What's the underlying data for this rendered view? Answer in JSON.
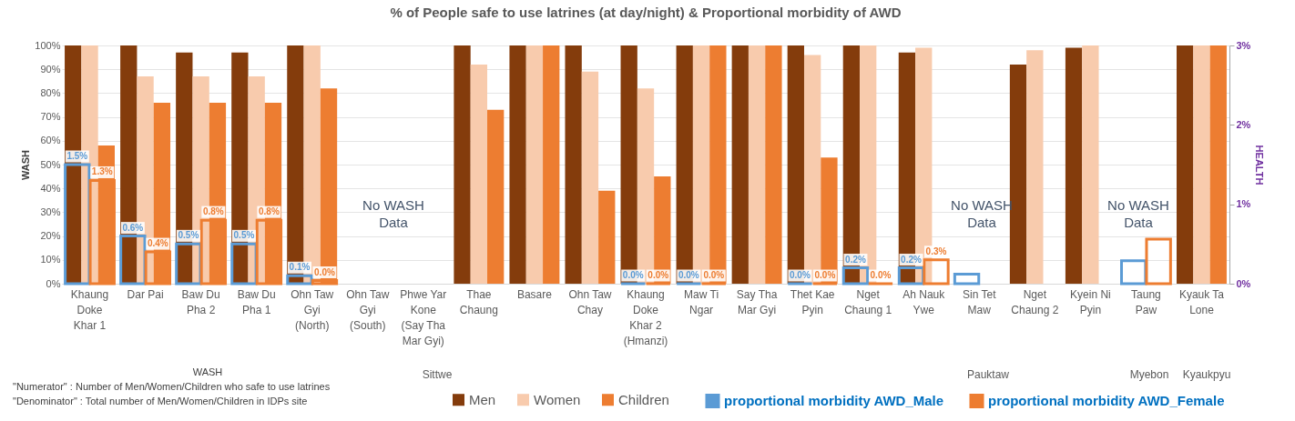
{
  "chart_data": {
    "type": "bar",
    "title": "% of People safe to use latrines (at day/night) & Proportional morbidity of AWD",
    "ylabel": "WASH",
    "y2label": "HEALTH",
    "categories": [
      "Khaung Doke Khar 1",
      "Dar Pai",
      "Baw Du Pha 2",
      "Baw Du Pha 1",
      "Ohn Taw Gyi (North)",
      "Ohn Taw Gyi (South)",
      "Phwe Yar Kone (Say Tha Mar Gyi)",
      "Thae Chaung",
      "Basare",
      "Ohn Taw Chay",
      "Khaung Doke Khar 2 (Hmanzi)",
      "Maw Ti Ngar",
      "Say Tha Mar Gyi",
      "Thet Kae Pyin",
      "Nget Chaung 1",
      "Ah Nauk Ywe",
      "Sin Tet Maw",
      "Nget Chaung 2",
      "Kyein Ni Pyin",
      "Taung Paw",
      "Kyauk Ta Lone"
    ],
    "series": [
      {
        "name": "Men",
        "color": "#843c0c",
        "values": [
          100,
          100,
          97,
          97,
          100,
          null,
          null,
          100,
          100,
          100,
          100,
          100,
          100,
          100,
          100,
          97,
          null,
          92,
          99,
          null,
          100
        ]
      },
      {
        "name": "Women",
        "color": "#f8cbad",
        "values": [
          100,
          87,
          87,
          87,
          100,
          null,
          null,
          92,
          100,
          89,
          82,
          100,
          100,
          96,
          100,
          99,
          null,
          98,
          100,
          null,
          100
        ]
      },
      {
        "name": "Children",
        "color": "#ed7d31",
        "values": [
          58,
          76,
          76,
          76,
          82,
          null,
          null,
          73,
          100,
          39,
          45,
          100,
          100,
          53,
          null,
          null,
          null,
          null,
          null,
          null,
          100
        ]
      },
      {
        "name": "proportional morbidity AWD_Male",
        "color": "#5b9bd5",
        "axis": "y2",
        "values": [
          1.5,
          0.6,
          0.5,
          0.5,
          0.1,
          null,
          null,
          null,
          null,
          null,
          0,
          0,
          null,
          0,
          0.2,
          0.2,
          0.12,
          null,
          null,
          0.29,
          null
        ],
        "value_labels": [
          "1.5%",
          "0.6%",
          "0.5%",
          "0.5%",
          "0.1%",
          null,
          null,
          null,
          null,
          null,
          "0.0%",
          "0.0%",
          null,
          "0.0%",
          "0.2%",
          "0.2%",
          null,
          null,
          null,
          null,
          null
        ]
      },
      {
        "name": "proportional morbidity AWD_Female",
        "color": "#ed7d31",
        "axis": "y2",
        "values": [
          1.3,
          0.4,
          0.8,
          0.8,
          0.04,
          null,
          null,
          null,
          null,
          null,
          0,
          0,
          null,
          0,
          0,
          0.3,
          null,
          null,
          null,
          0.56,
          null
        ],
        "value_labels": [
          "1.3%",
          "0.4%",
          "0.8%",
          "0.8%",
          "0.0%",
          null,
          null,
          null,
          null,
          null,
          "0.0%",
          "0.0%",
          null,
          "0.0%",
          "0.0%",
          "0.3%",
          null,
          null,
          null,
          null,
          null
        ]
      }
    ],
    "ylim": [
      0,
      100
    ],
    "yticks": [
      {
        "value": 0,
        "label": "0%"
      },
      {
        "value": 10,
        "label": "10%"
      },
      {
        "value": 20,
        "label": "20%"
      },
      {
        "value": 30,
        "label": "30%"
      },
      {
        "value": 40,
        "label": "40%"
      },
      {
        "value": 50,
        "label": "50%"
      },
      {
        "value": 60,
        "label": "60%"
      },
      {
        "value": 70,
        "label": "70%"
      },
      {
        "value": 80,
        "label": "80%"
      },
      {
        "value": 90,
        "label": "90%"
      },
      {
        "value": 100,
        "label": "100%"
      }
    ],
    "y2lim": [
      0,
      3
    ],
    "y2ticks": [
      {
        "value": 0,
        "label": "0%"
      },
      {
        "value": 1,
        "label": "1%"
      },
      {
        "value": 2,
        "label": "2%"
      },
      {
        "value": 3,
        "label": "3%"
      }
    ],
    "grid": "y",
    "legend": "bottom",
    "annotations": [
      "No WASH Data",
      "No WASH Data",
      "No WASH Data",
      "Sittwe",
      "Pauktaw",
      "Myebon",
      "Kyaukpyu",
      "WASH",
      "\"Numerator\" : Number of  Men/Women/Children who safe to use latrines",
      "\"Denominator\" : Total  number of Men/Women/Children in IDPs site"
    ]
  }
}
